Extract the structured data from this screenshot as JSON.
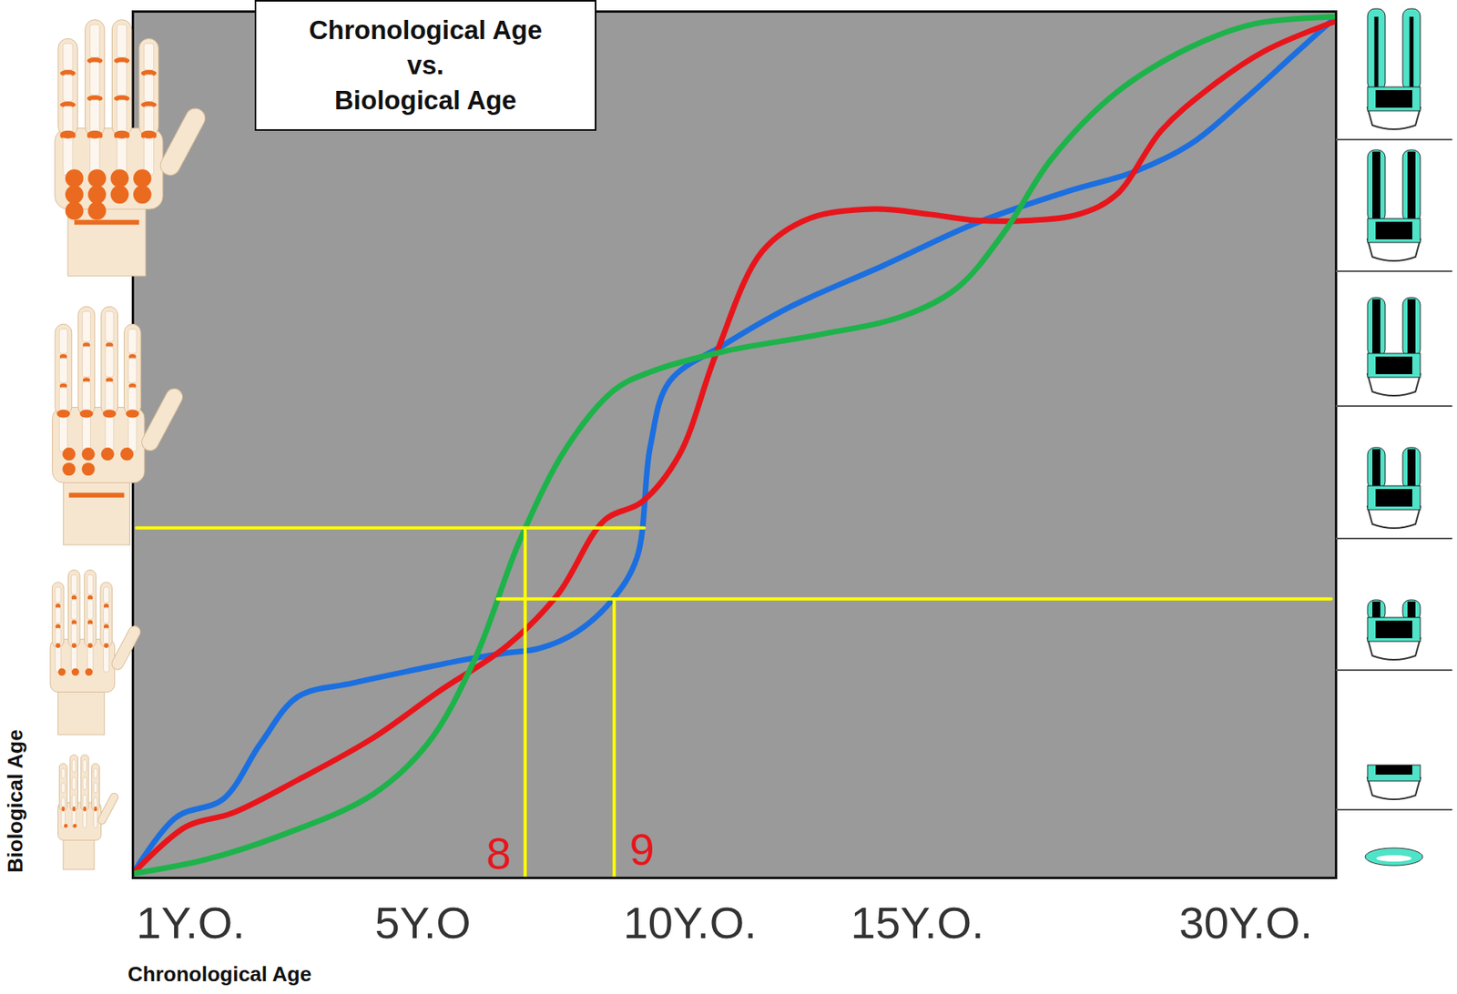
{
  "chart_data": {
    "type": "line",
    "title": "Chronological Age\nvs.\nBiological Age",
    "x_label": "Chronological Age",
    "y_label": "Biological Age",
    "xlim": [
      0,
      100
    ],
    "ylim": [
      0,
      100
    ],
    "xticks": [
      {
        "value": 4.8,
        "label": "1Y.O."
      },
      {
        "value": 24.1,
        "label": "5Y.O"
      },
      {
        "value": 46.3,
        "label": "10Y.O."
      },
      {
        "value": 65.2,
        "label": "15Y.O."
      },
      {
        "value": 92.5,
        "label": "30Y.O."
      }
    ],
    "yticks": [],
    "tick_labels": "x",
    "grid": false,
    "series": [
      {
        "color": "#1b6fe0",
        "x": [
          0,
          3.6,
          7.5,
          10.6,
          13.7,
          18.3,
          23.7,
          27.6,
          30.7,
          33.8,
          36.9,
          39.9,
          41.9,
          43.0,
          44.6,
          49.2,
          54.6,
          62.4,
          70.1,
          77.8,
          83.2,
          87.9,
          92.5,
          96.4,
          100
        ],
        "values": [
          0.5,
          7.0,
          9.1,
          15.5,
          20.9,
          22.5,
          24.1,
          25.2,
          25.9,
          26.5,
          28.4,
          32.2,
          37.0,
          49.8,
          57.3,
          61.6,
          65.9,
          70.7,
          75.6,
          79.3,
          81.5,
          84.7,
          90.0,
          94.9,
          99.4
        ]
      },
      {
        "color": "#e8151b",
        "x": [
          0,
          4.4,
          8.3,
          13.7,
          19.9,
          25.3,
          31.1,
          35.3,
          39.2,
          42.3,
          45.4,
          48.5,
          52.3,
          56.2,
          61.6,
          66.2,
          70.1,
          74.7,
          78.6,
          81.7,
          85.5,
          89.4,
          94.0,
          100
        ],
        "values": [
          0.5,
          5.9,
          7.5,
          11.3,
          16.1,
          21.4,
          26.8,
          32.7,
          41.3,
          43.4,
          48.8,
          60.6,
          72.3,
          76.1,
          77.2,
          76.6,
          75.9,
          75.9,
          76.6,
          78.8,
          86.3,
          91.1,
          95.4,
          98.9
        ]
      },
      {
        "color": "#1db34a",
        "x": [
          0,
          6.0,
          12.1,
          19.9,
          24.5,
          28.4,
          32.2,
          36.1,
          40.0,
          43.0,
          49.2,
          57.0,
          63.9,
          68.5,
          72.4,
          76.3,
          81.7,
          87.9,
          93.3,
          100
        ],
        "values": [
          0.5,
          2.1,
          4.8,
          9.6,
          15.5,
          25.2,
          39.1,
          49.8,
          56.3,
          58.4,
          60.8,
          62.7,
          64.8,
          68.1,
          74.5,
          82.9,
          90.6,
          95.9,
          98.6,
          99.4
        ]
      }
    ],
    "annotations": [
      {
        "type": "line",
        "color": "#ffff00",
        "x": [
          0.3,
          42.5
        ],
        "y": [
          40.4,
          40.4
        ]
      },
      {
        "type": "line",
        "color": "#ffff00",
        "x": [
          30.3,
          99.6
        ],
        "y": [
          32.2,
          32.2
        ]
      },
      {
        "type": "line",
        "color": "#ffff00",
        "x": [
          32.6,
          32.6
        ],
        "y": [
          40.4,
          0
        ]
      },
      {
        "type": "line",
        "color": "#ffff00",
        "x": [
          40.0,
          40.0
        ],
        "y": [
          32.2,
          0
        ]
      },
      {
        "type": "text",
        "text": "8",
        "color": "#e8151b",
        "x": 30.4,
        "y": 2.7
      },
      {
        "type": "text",
        "text": "9",
        "color": "#e8151b",
        "x": 42.3,
        "y": 3.2
      }
    ]
  }
}
